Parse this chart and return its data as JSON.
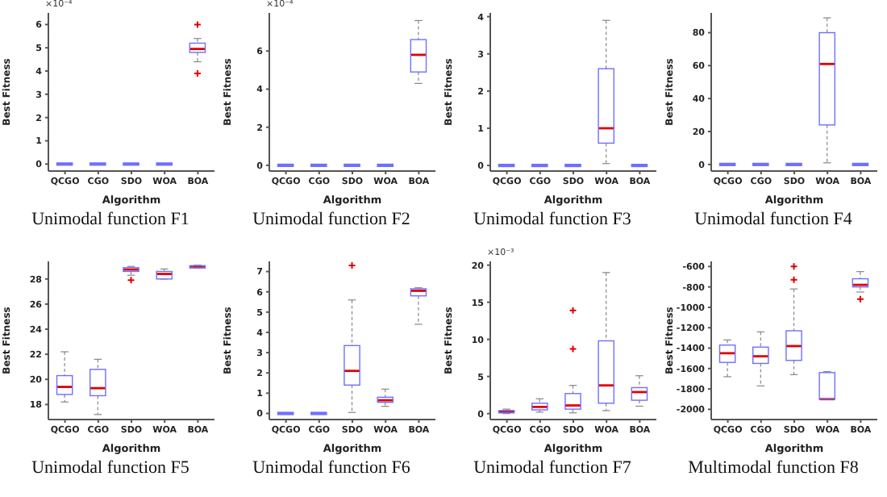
{
  "chart_data": [
    {
      "type": "box",
      "title": "Unimodal function F1",
      "xlabel": "Algorithm",
      "ylabel": "Best Fitness",
      "annotations": [
        "×10⁻⁴"
      ],
      "categories": [
        "QCGO",
        "CGO",
        "SDO",
        "WOA",
        "BOA"
      ],
      "ylim": [
        -0.3,
        6.5
      ],
      "yticks": [
        0,
        1,
        2,
        3,
        4,
        5,
        6
      ],
      "boxes": [
        {
          "low": 0,
          "q1": 0,
          "median": 0,
          "q3": 0,
          "high": 0
        },
        {
          "low": 0,
          "q1": 0,
          "median": 0,
          "q3": 0,
          "high": 0
        },
        {
          "low": 0,
          "q1": 0,
          "median": 0,
          "q3": 0,
          "high": 0
        },
        {
          "low": 0,
          "q1": 0,
          "median": 0,
          "q3": 0,
          "high": 0
        },
        {
          "low": 4.4,
          "q1": 4.8,
          "median": 4.95,
          "q3": 5.2,
          "high": 5.4,
          "outliers": [
            6.0,
            3.9
          ]
        }
      ]
    },
    {
      "type": "box",
      "title": "Unimodal function F2",
      "xlabel": "Algorithm",
      "ylabel": "Best Fitness",
      "annotations": [
        "×10⁻⁴"
      ],
      "categories": [
        "QCGO",
        "CGO",
        "SDO",
        "WOA",
        "BOA"
      ],
      "ylim": [
        -0.3,
        8
      ],
      "yticks": [
        0,
        2,
        4,
        6
      ],
      "boxes": [
        {
          "low": 0,
          "q1": 0,
          "median": 0,
          "q3": 0,
          "high": 0
        },
        {
          "low": 0,
          "q1": 0,
          "median": 0,
          "q3": 0,
          "high": 0
        },
        {
          "low": 0,
          "q1": 0,
          "median": 0,
          "q3": 0,
          "high": 0
        },
        {
          "low": 0,
          "q1": 0,
          "median": 0,
          "q3": 0,
          "high": 0
        },
        {
          "low": 4.3,
          "q1": 4.9,
          "median": 5.8,
          "q3": 6.6,
          "high": 7.6
        }
      ]
    },
    {
      "type": "box",
      "title": "Unimodal function F3",
      "xlabel": "Algorithm",
      "ylabel": "Best Fitness",
      "categories": [
        "QCGO",
        "CGO",
        "SDO",
        "WOA",
        "BOA"
      ],
      "ylim": [
        -0.15,
        4.1
      ],
      "yticks": [
        0,
        1,
        2,
        3,
        4
      ],
      "boxes": [
        {
          "low": 0,
          "q1": 0,
          "median": 0,
          "q3": 0,
          "high": 0
        },
        {
          "low": 0,
          "q1": 0,
          "median": 0,
          "q3": 0,
          "high": 0
        },
        {
          "low": 0,
          "q1": 0,
          "median": 0,
          "q3": 0,
          "high": 0
        },
        {
          "low": 0.05,
          "q1": 0.6,
          "median": 1.0,
          "q3": 2.6,
          "high": 3.9
        },
        {
          "low": 0,
          "q1": 0,
          "median": 0,
          "q3": 0,
          "high": 0
        }
      ]
    },
    {
      "type": "box",
      "title": "Unimodal function F4",
      "xlabel": "Algorithm",
      "ylabel": "Best Fitness",
      "categories": [
        "QCGO",
        "CGO",
        "SDO",
        "WOA",
        "BOA"
      ],
      "ylim": [
        -4,
        92
      ],
      "yticks": [
        0,
        20,
        40,
        60,
        80
      ],
      "boxes": [
        {
          "low": 0,
          "q1": 0,
          "median": 0,
          "q3": 0,
          "high": 0
        },
        {
          "low": 0,
          "q1": 0,
          "median": 0,
          "q3": 0,
          "high": 0
        },
        {
          "low": 0,
          "q1": 0,
          "median": 0,
          "q3": 0,
          "high": 0
        },
        {
          "low": 1,
          "q1": 24,
          "median": 61,
          "q3": 80,
          "high": 89
        },
        {
          "low": 0,
          "q1": 0,
          "median": 0,
          "q3": 0,
          "high": 0
        }
      ]
    },
    {
      "type": "box",
      "title": "Unimodal function F5",
      "xlabel": "Algorithm",
      "ylabel": "Best Fitness",
      "categories": [
        "QCGO",
        "CGO",
        "SDO",
        "WOA",
        "BOA"
      ],
      "ylim": [
        16.8,
        29.4
      ],
      "yticks": [
        18,
        20,
        22,
        24,
        26,
        28
      ],
      "boxes": [
        {
          "low": 18.2,
          "q1": 18.8,
          "median": 19.4,
          "q3": 20.3,
          "high": 22.2
        },
        {
          "low": 17.2,
          "q1": 18.7,
          "median": 19.3,
          "q3": 20.8,
          "high": 21.6
        },
        {
          "low": 28.3,
          "q1": 28.6,
          "median": 28.75,
          "q3": 28.9,
          "high": 29.0,
          "outliers": [
            27.9
          ]
        },
        {
          "low": 28.0,
          "q1": 28.0,
          "median": 28.4,
          "q3": 28.6,
          "high": 28.8
        },
        {
          "low": 28.9,
          "q1": 28.95,
          "median": 29.0,
          "q3": 29.05,
          "high": 29.1
        }
      ]
    },
    {
      "type": "box",
      "title": "Unimodal function F6",
      "xlabel": "Algorithm",
      "ylabel": "Best Fitness",
      "categories": [
        "QCGO",
        "CGO",
        "SDO",
        "WOA",
        "BOA"
      ],
      "ylim": [
        -0.3,
        7.5
      ],
      "yticks": [
        0,
        1,
        2,
        3,
        4,
        5,
        6,
        7
      ],
      "boxes": [
        {
          "low": 0,
          "q1": 0,
          "median": 0,
          "q3": 0,
          "high": 0
        },
        {
          "low": 0,
          "q1": 0,
          "median": 0,
          "q3": 0,
          "high": 0
        },
        {
          "low": 0.05,
          "q1": 1.4,
          "median": 2.1,
          "q3": 3.35,
          "high": 5.6,
          "outliers": [
            7.3
          ]
        },
        {
          "low": 0.35,
          "q1": 0.55,
          "median": 0.65,
          "q3": 0.8,
          "high": 1.2
        },
        {
          "low": 4.4,
          "q1": 5.8,
          "median": 6.05,
          "q3": 6.15,
          "high": 6.2
        }
      ]
    },
    {
      "type": "box",
      "title": "Unimodal function F7",
      "xlabel": "Algorithm",
      "ylabel": "Best Fitness",
      "annotations": [
        "×10⁻³"
      ],
      "categories": [
        "QCGO",
        "CGO",
        "SDO",
        "WOA",
        "BOA"
      ],
      "ylim": [
        -0.8,
        20.5
      ],
      "yticks": [
        0,
        5,
        10,
        15,
        20
      ],
      "boxes": [
        {
          "low": 0,
          "q1": 0.1,
          "median": 0.3,
          "q3": 0.4,
          "high": 0.6
        },
        {
          "low": 0.2,
          "q1": 0.5,
          "median": 0.9,
          "q3": 1.4,
          "high": 2.0
        },
        {
          "low": 0.1,
          "q1": 0.6,
          "median": 1.1,
          "q3": 2.7,
          "high": 3.8,
          "outliers": [
            8.7,
            13.9
          ]
        },
        {
          "low": 0.4,
          "q1": 1.4,
          "median": 3.8,
          "q3": 9.8,
          "high": 19.0
        },
        {
          "low": 1.0,
          "q1": 1.8,
          "median": 2.9,
          "q3": 3.5,
          "high": 5.1
        }
      ]
    },
    {
      "type": "box",
      "title": "Multimodal function F8",
      "xlabel": "Algorithm",
      "ylabel": "Best Fitness",
      "categories": [
        "QCGO",
        "CGO",
        "SDO",
        "WOA",
        "BOA"
      ],
      "ylim": [
        -2100,
        -550
      ],
      "yticks": [
        -2000,
        -1800,
        -1600,
        -1400,
        -1200,
        -1000,
        -800,
        -600
      ],
      "boxes": [
        {
          "low": -1680,
          "q1": -1540,
          "median": -1450,
          "q3": -1370,
          "high": -1320
        },
        {
          "low": -1770,
          "q1": -1550,
          "median": -1480,
          "q3": -1390,
          "high": -1240
        },
        {
          "low": -1660,
          "q1": -1520,
          "median": -1380,
          "q3": -1230,
          "high": -820,
          "outliers": [
            -600,
            -730
          ]
        },
        {
          "low": -1900,
          "q1": -1900,
          "median": -1900,
          "q3": -1640,
          "high": -1630
        },
        {
          "low": -850,
          "q1": -800,
          "median": -780,
          "q3": -720,
          "high": -650,
          "outliers": [
            -920
          ]
        }
      ]
    }
  ]
}
